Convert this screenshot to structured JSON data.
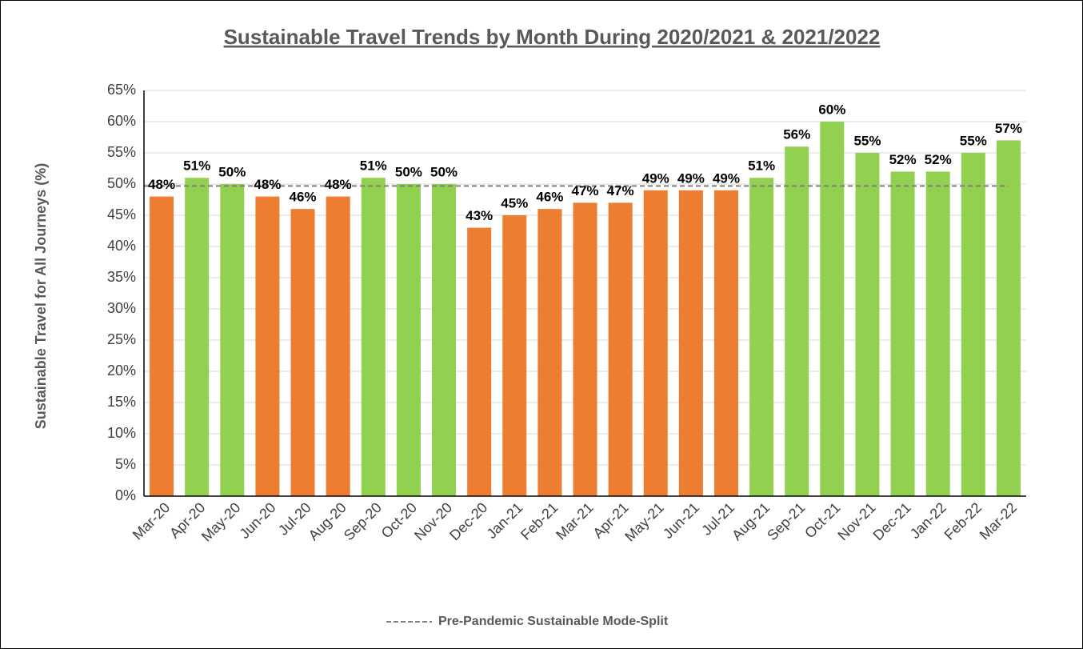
{
  "chart_data": {
    "type": "bar",
    "title": "Sustainable Travel Trends by Month During 2020/2021 & 2021/2022",
    "y_label": "Sustainable Travel for All Journeys (%)",
    "categories": [
      "Mar-20",
      "Apr-20",
      "May-20",
      "Jun-20",
      "Jul-20",
      "Aug-20",
      "Sep-20",
      "Oct-20",
      "Nov-20",
      "Dec-20",
      "Jan-21",
      "Feb-21",
      "Mar-21",
      "Apr-21",
      "May-21",
      "Jun-21",
      "Jul-21",
      "Aug-21",
      "Sep-21",
      "Oct-21",
      "Nov-21",
      "Dec-21",
      "Jan-22",
      "Feb-22",
      "Mar-22"
    ],
    "values": [
      48,
      51,
      50,
      48,
      46,
      48,
      51,
      50,
      50,
      43,
      45,
      46,
      47,
      47,
      49,
      49,
      49,
      51,
      56,
      60,
      55,
      52,
      52,
      55,
      57
    ],
    "value_labels": [
      "48%",
      "51%",
      "50%",
      "48%",
      "46%",
      "48%",
      "51%",
      "50%",
      "50%",
      "43%",
      "45%",
      "46%",
      "47%",
      "47%",
      "49%",
      "49%",
      "49%",
      "51%",
      "56%",
      "60%",
      "55%",
      "52%",
      "52%",
      "55%",
      "57%"
    ],
    "colors": [
      "#ed7d31",
      "#92d050",
      "#92d050",
      "#ed7d31",
      "#ed7d31",
      "#ed7d31",
      "#92d050",
      "#92d050",
      "#92d050",
      "#ed7d31",
      "#ed7d31",
      "#ed7d31",
      "#ed7d31",
      "#ed7d31",
      "#ed7d31",
      "#ed7d31",
      "#ed7d31",
      "#92d050",
      "#92d050",
      "#92d050",
      "#92d050",
      "#92d050",
      "#92d050",
      "#92d050",
      "#92d050"
    ],
    "reference_line": {
      "name": "Pre-Pandemic Sustainable Mode-Split",
      "value": 49.7,
      "color": "#808080"
    },
    "ylim": [
      0,
      65
    ],
    "yticks": [
      {
        "value": 0,
        "label": "0%"
      },
      {
        "value": 5,
        "label": "5%"
      },
      {
        "value": 10,
        "label": "10%"
      },
      {
        "value": 15,
        "label": "15%"
      },
      {
        "value": 20,
        "label": "20%"
      },
      {
        "value": 25,
        "label": "25%"
      },
      {
        "value": 30,
        "label": "30%"
      },
      {
        "value": 35,
        "label": "35%"
      },
      {
        "value": 40,
        "label": "40%"
      },
      {
        "value": 45,
        "label": "45%"
      },
      {
        "value": 50,
        "label": "50%"
      },
      {
        "value": 55,
        "label": "55%"
      },
      {
        "value": 60,
        "label": "60%"
      },
      {
        "value": 65,
        "label": "65%"
      }
    ],
    "grid": true,
    "legend": "bottom"
  }
}
